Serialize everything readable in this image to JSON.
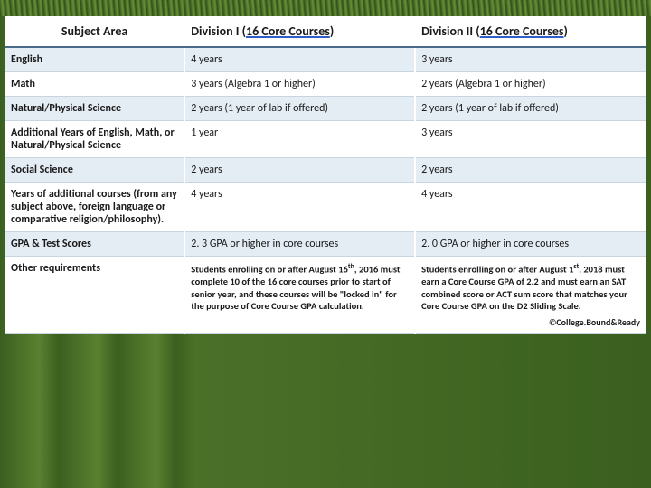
{
  "headers": {
    "subject": "Subject Area",
    "div1_a": "Division I (",
    "div1_b": "16  Core Courses",
    "div1_c": ")",
    "div2_a": "Division II (",
    "div2_b": "16  Core Courses",
    "div2_c": ")"
  },
  "rows": {
    "r0": {
      "subject": "English",
      "d1": "4 years",
      "d2": "3 years"
    },
    "r1": {
      "subject": "Math",
      "d1": "3 years (Algebra 1 or higher)",
      "d2": "2 years (Algebra 1 or higher)"
    },
    "r2": {
      "subject": "Natural/Physical Science",
      "d1": "2 years (1 year of lab if offered)",
      "d2": "2 years (1 year of lab if offered)"
    },
    "r3": {
      "subject": "Additional Years of English, Math, or Natural/Physical Science",
      "d1": "1 year",
      "d2": "3 years"
    },
    "r4": {
      "subject": "Social Science",
      "d1": "2 years",
      "d2": "2 years"
    },
    "r5": {
      "subject": "Years of additional courses (from any subject above, foreign language or comparative religion/philosophy).",
      "d1": "4 years",
      "d2": "4 years"
    },
    "r6": {
      "subject": "GPA & Test Scores",
      "d1": "2. 3 GPA or higher in core courses",
      "d2": "2. 0 GPA or higher in core courses"
    },
    "r7": {
      "subject": "Other requirements",
      "d1_a": "Students enrolling on or after August 16",
      "d1_sup": "th",
      "d1_b": ", 2016 must complete 10 of the 16 core courses prior to start of senior year, and these courses will be \"locked in\" for the purpose of Core Course GPA calculation.",
      "d2_a": "Students enrolling on or after August 1",
      "d2_sup": "st",
      "d2_b": ", 2018 must earn a Core Course GPA of 2.2 and must earn an SAT combined score or ACT sum score that matches your Core Course GPA on the D2 Sliding Scale.",
      "copyright": "©College.Bound&Ready"
    }
  }
}
